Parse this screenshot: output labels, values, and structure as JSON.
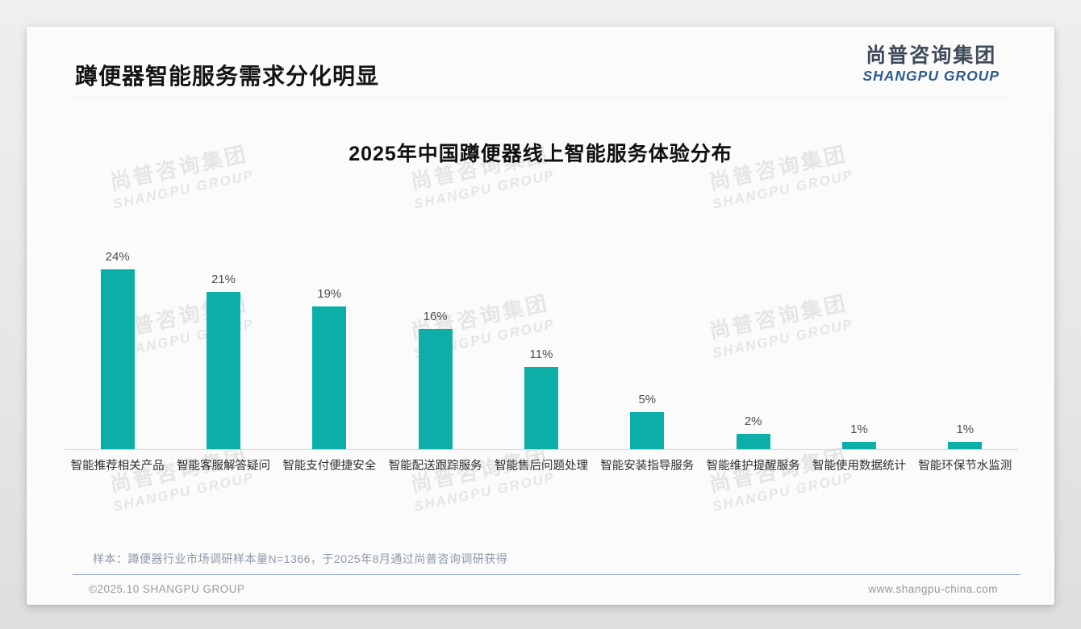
{
  "header": {
    "title": "蹲便器智能服务需求分化明显",
    "logo_cn": "尚普咨询集团",
    "logo_en": "SHANGPU GROUP"
  },
  "chart_data": {
    "type": "bar",
    "title": "2025年中国蹲便器线上智能服务体验分布",
    "categories": [
      "智能推荐相关产品",
      "智能客服解答疑问",
      "智能支付便捷安全",
      "智能配送跟踪服务",
      "智能售后问题处理",
      "智能安装指导服务",
      "智能维护提醒服务",
      "智能使用数据统计",
      "智能环保节水监测"
    ],
    "values": [
      24,
      21,
      19,
      16,
      11,
      5,
      2,
      1,
      1
    ],
    "unit": "%",
    "bar_color": "#0cafa8",
    "ylim": [
      0,
      26
    ],
    "grid": false,
    "legend": false,
    "xlabel": "",
    "ylabel": ""
  },
  "note": "样本：蹲便器行业市场调研样本量N=1366，于2025年8月通过尚普咨询调研获得",
  "footer": {
    "left": "©2025.10 SHANGPU GROUP",
    "right": "www.shangpu-china.com"
  },
  "watermark": {
    "line1": "尚普咨询集团",
    "line2": "SHANGPU GROUP"
  }
}
